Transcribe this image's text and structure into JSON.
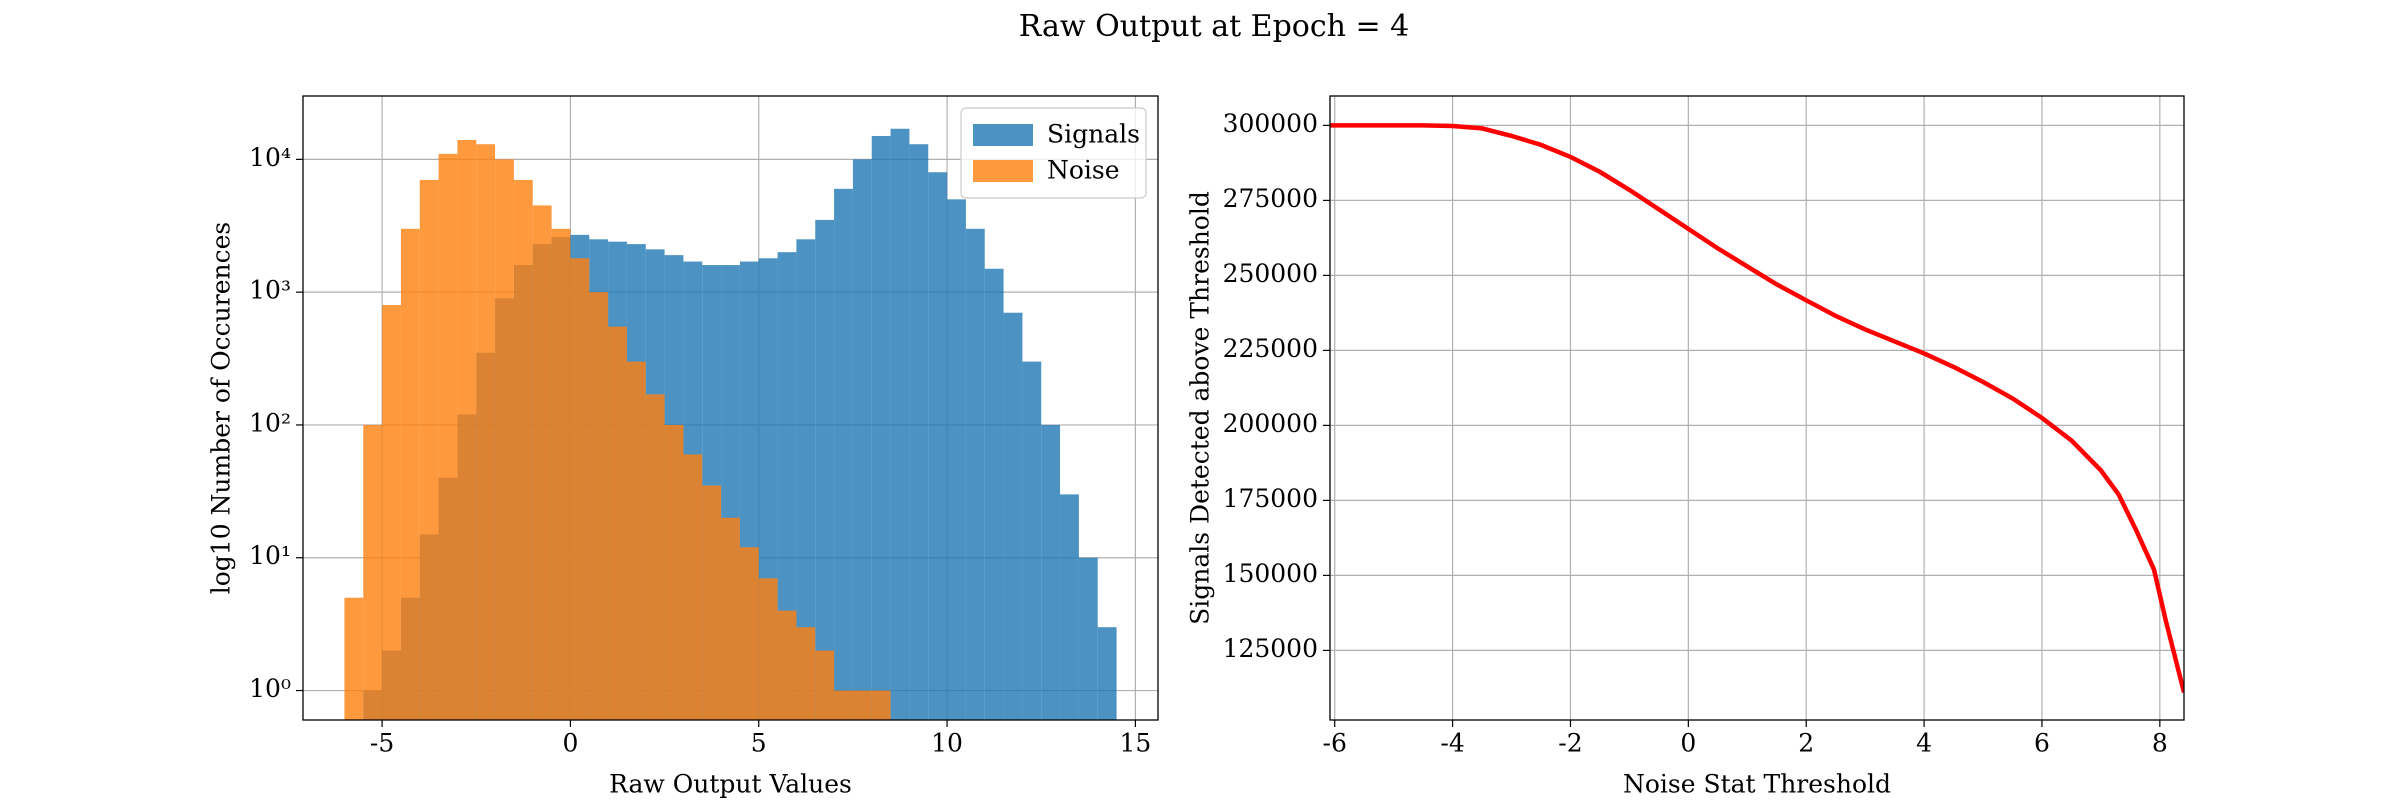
{
  "title": "Raw Output at Epoch = 4",
  "chart_data": [
    {
      "type": "histogram",
      "xlabel": "Raw Output Values",
      "ylabel": "log10 Number of Occurences",
      "bins": [
        -6,
        -5.5,
        -5,
        -4.5,
        -4,
        -3.5,
        -3,
        -2.5,
        -2,
        -1.5,
        -1,
        -0.5,
        0,
        0.5,
        1,
        1.5,
        2,
        2.5,
        3,
        3.5,
        4,
        4.5,
        5,
        5.5,
        6,
        6.5,
        7,
        7.5,
        8,
        8.5,
        9,
        9.5,
        10,
        10.5,
        11,
        11.5,
        12,
        12.5,
        13,
        13.5,
        14,
        14.5
      ],
      "series": [
        {
          "name": "Signals",
          "color": "#1f77b4",
          "values": [
            0,
            1,
            2,
            5,
            15,
            40,
            120,
            350,
            900,
            1600,
            2300,
            2600,
            2700,
            2500,
            2400,
            2300,
            2100,
            1900,
            1700,
            1600,
            1600,
            1700,
            1800,
            2000,
            2500,
            3500,
            6000,
            10000,
            15000,
            17000,
            13000,
            8000,
            5000,
            3000,
            1500,
            700,
            300,
            100,
            30,
            10,
            3
          ]
        },
        {
          "name": "Noise",
          "color": "#ff7f0e",
          "values": [
            5,
            100,
            800,
            3000,
            7000,
            11000,
            14000,
            13000,
            10000,
            7000,
            4500,
            3000,
            1800,
            1000,
            550,
            300,
            170,
            100,
            60,
            35,
            20,
            12,
            7,
            4,
            3,
            2,
            1,
            1,
            1,
            0,
            0,
            0,
            0,
            0,
            0,
            0,
            0,
            0,
            0,
            0,
            0
          ]
        }
      ],
      "alpha": 0.8,
      "xlim": [
        -7.1,
        15.6
      ],
      "xticks": [
        -5,
        0,
        5,
        10,
        15
      ],
      "ylim": [
        0.6,
        30000
      ],
      "log_scale": true,
      "yticks": [
        {
          "value": 1,
          "label": "10⁰"
        },
        {
          "value": 10,
          "label": "10¹"
        },
        {
          "value": 100,
          "label": "10²"
        },
        {
          "value": 1000,
          "label": "10³"
        },
        {
          "value": 10000,
          "label": "10⁴"
        }
      ],
      "grid": true,
      "legend": "upper right"
    },
    {
      "type": "line",
      "xlabel": "Noise Stat Threshold",
      "ylabel": "Signals Detected above Threshold",
      "x": [
        -6.08,
        -4.5,
        -4,
        -3.5,
        -3,
        -2.5,
        -2,
        -1.5,
        -1,
        -0.5,
        0,
        0.5,
        1,
        1.5,
        2,
        2.5,
        3,
        3.5,
        4,
        4.5,
        5,
        5.5,
        6,
        6.5,
        7,
        7.3,
        7.6,
        7.9,
        8.1,
        8.41
      ],
      "series": [
        {
          "color": "#ff0000",
          "values": [
            300000,
            300000,
            299800,
            299000,
            296500,
            293500,
            289500,
            284500,
            278500,
            272000,
            265500,
            259000,
            253000,
            247000,
            241700,
            236500,
            232000,
            228000,
            224000,
            219500,
            214500,
            209000,
            202500,
            195000,
            185000,
            177000,
            165000,
            152000,
            135000,
            111000
          ]
        }
      ],
      "xlim": [
        -6.08,
        8.41
      ],
      "xticks": [
        -6,
        -4,
        -2,
        0,
        2,
        4,
        6,
        8
      ],
      "ylim": [
        101800,
        309800
      ],
      "yticks": [
        125000,
        150000,
        175000,
        200000,
        225000,
        250000,
        275000,
        300000
      ],
      "grid": true
    }
  ]
}
